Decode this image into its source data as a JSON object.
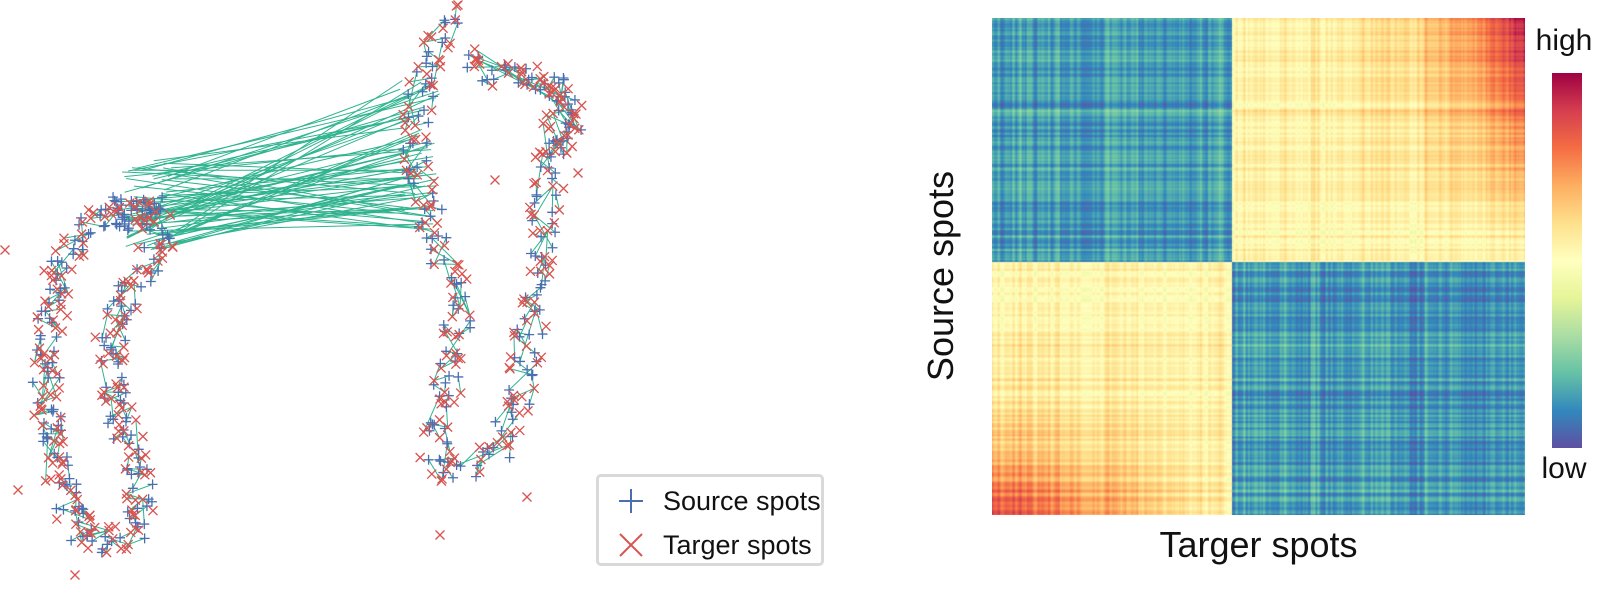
{
  "legend": {
    "source_label": "Source spots",
    "target_label": "Targer spots"
  },
  "heatmap": {
    "xlabel": "Targer spots",
    "ylabel": "Source spots",
    "colorbar_high": "high",
    "colorbar_low": "low"
  },
  "colors": {
    "source_marker": "#4a6fb0",
    "target_marker": "#d9534f",
    "match_line": "#2fb38f"
  }
}
